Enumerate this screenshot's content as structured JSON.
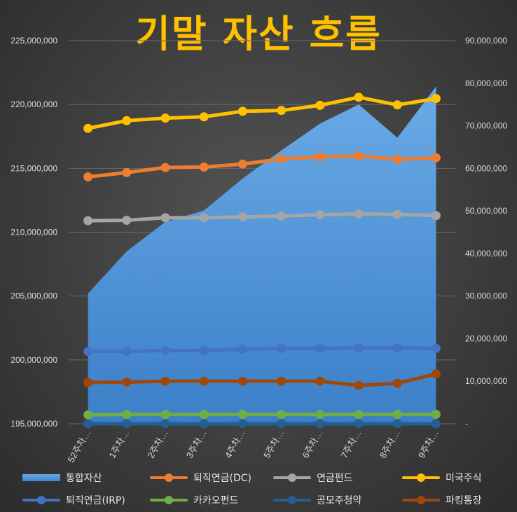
{
  "chart_data": {
    "type": "line",
    "title": "기말 자산 흐름",
    "categories": [
      "52주차…",
      "1주차…",
      "2주차…",
      "3주차…",
      "4주차…",
      "5주차…",
      "6주차…",
      "7주차…",
      "8주차…",
      "9주차…"
    ],
    "left_axis": {
      "ylim": [
        195000000,
        225000000
      ],
      "ticks": [
        "195,000,000",
        "200,000,000",
        "205,000,000",
        "210,000,000",
        "215,000,000",
        "220,000,000",
        "225,000,000"
      ],
      "tick_values": [
        195000000,
        200000000,
        205000000,
        210000000,
        215000000,
        220000000,
        225000000
      ]
    },
    "right_axis": {
      "ylim": [
        0,
        90000000
      ],
      "ticks": [
        "-",
        "10,000,000",
        "20,000,000",
        "30,000,000",
        "40,000,000",
        "50,000,000",
        "60,000,000",
        "70,000,000",
        "80,000,000",
        "90,000,000"
      ],
      "tick_values": [
        0,
        10000000,
        20000000,
        30000000,
        40000000,
        50000000,
        60000000,
        70000000,
        80000000,
        90000000
      ]
    },
    "area_series": {
      "name": "통합자산",
      "axis": "left",
      "color": "#5b9bd5",
      "values": [
        205200000,
        208500000,
        210800000,
        211700000,
        214200000,
        216400000,
        218500000,
        220000000,
        217400000,
        221400000
      ]
    },
    "series": [
      {
        "name": "퇴직연금(DC)",
        "axis": "right",
        "color": "#ED7D31",
        "values": [
          58000000,
          59000000,
          60200000,
          60300000,
          61000000,
          62200000,
          62700000,
          62900000,
          62100000,
          62500000
        ]
      },
      {
        "name": "연금펀드",
        "axis": "right",
        "color": "#A5A5A5",
        "values": [
          47700000,
          47800000,
          48400000,
          48400000,
          48600000,
          48800000,
          49100000,
          49300000,
          49200000,
          48900000
        ]
      },
      {
        "name": "미국주식",
        "axis": "right",
        "color": "#FFC000",
        "values": [
          69400000,
          71200000,
          71800000,
          72100000,
          73400000,
          73600000,
          74800000,
          76700000,
          74900000,
          76400000
        ]
      },
      {
        "name": "퇴직연금(IRP)",
        "axis": "right",
        "color": "#4472C4",
        "values": [
          17000000,
          17000000,
          17200000,
          17200000,
          17500000,
          17700000,
          17700000,
          17800000,
          17800000,
          17700000
        ]
      },
      {
        "name": "카카오펀드",
        "axis": "right",
        "color": "#70AD47",
        "values": [
          2100000,
          2200000,
          2200000,
          2200000,
          2200000,
          2200000,
          2200000,
          2200000,
          2200000,
          2200000
        ]
      },
      {
        "name": "공모주청약",
        "axis": "right",
        "color": "#255E91",
        "values": [
          0,
          0,
          0,
          0,
          0,
          0,
          0,
          0,
          0,
          0
        ]
      },
      {
        "name": "파킹통장",
        "axis": "right",
        "color": "#9E480E",
        "values": [
          9700000,
          9800000,
          10000000,
          10000000,
          10000000,
          10000000,
          10000000,
          9000000,
          9500000,
          11700000
        ]
      }
    ],
    "legend": {
      "position": "bottom",
      "items": [
        "통합자산",
        "퇴직연금(DC)",
        "연금펀드",
        "미국주식",
        "퇴직연금(IRP)",
        "카카오펀드",
        "공모주청약",
        "파킹통장"
      ]
    },
    "grid": true
  }
}
